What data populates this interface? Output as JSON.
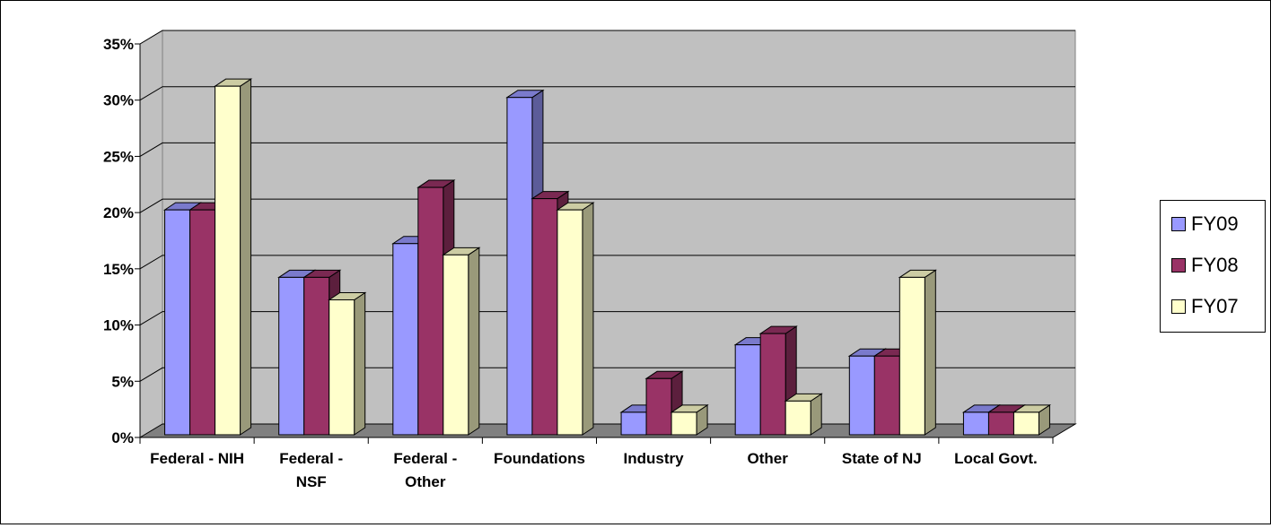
{
  "chart_data": {
    "type": "bar",
    "title": "",
    "xlabel": "",
    "ylabel": "",
    "ylim": [
      0,
      35
    ],
    "y_ticks": [
      "0%",
      "5%",
      "10%",
      "15%",
      "20%",
      "25%",
      "30%",
      "35%"
    ],
    "categories": [
      [
        "Federal - NIH"
      ],
      [
        "Federal -",
        "NSF"
      ],
      [
        "Federal -",
        "Other"
      ],
      [
        "Foundations"
      ],
      [
        "Industry"
      ],
      [
        "Other"
      ],
      [
        "State of NJ"
      ],
      [
        "Local Govt."
      ]
    ],
    "series": [
      {
        "name": "FY09",
        "color": "#9999ff",
        "values": [
          20,
          14,
          17,
          30,
          2,
          8,
          7,
          2
        ]
      },
      {
        "name": "FY08",
        "color": "#993366",
        "values": [
          20,
          14,
          22,
          21,
          5,
          9,
          7,
          2
        ]
      },
      {
        "name": "FY07",
        "color": "#ffffcc",
        "values": [
          31,
          12,
          16,
          20,
          2,
          3,
          14,
          2
        ]
      }
    ],
    "grid": true,
    "legend_position": "right"
  }
}
